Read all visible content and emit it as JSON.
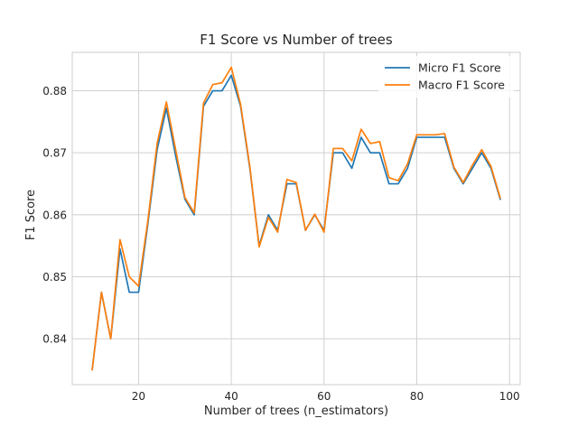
{
  "chart_data": {
    "type": "line",
    "title": "F1 Score vs Number of trees",
    "xlabel": "Number of trees (n_estimators)",
    "ylabel": "F1 Score",
    "xlim": [
      5.7,
      102.3
    ],
    "ylim": [
      0.8326,
      0.8862
    ],
    "xticks": [
      20,
      40,
      60,
      80,
      100
    ],
    "xtick_labels": [
      "20",
      "40",
      "60",
      "80",
      "100"
    ],
    "yticks": [
      0.84,
      0.85,
      0.86,
      0.87,
      0.88
    ],
    "ytick_labels": [
      "0.84",
      "0.85",
      "0.86",
      "0.87",
      "0.88"
    ],
    "grid": true,
    "legend_position": "top-right",
    "x": [
      10,
      12,
      14,
      16,
      18,
      20,
      22,
      24,
      26,
      28,
      30,
      32,
      34,
      36,
      38,
      40,
      42,
      44,
      46,
      48,
      50,
      52,
      54,
      56,
      58,
      60,
      62,
      64,
      66,
      68,
      70,
      72,
      74,
      76,
      78,
      80,
      82,
      84,
      86,
      88,
      90,
      92,
      94,
      96,
      98
    ],
    "series": [
      {
        "name": "Micro F1 Score",
        "color": "#1f77b4",
        "values": [
          0.835,
          0.8475,
          0.84,
          0.8545,
          0.8475,
          0.8475,
          0.8585,
          0.8705,
          0.8772,
          0.8695,
          0.8625,
          0.86,
          0.8775,
          0.88,
          0.88,
          0.8825,
          0.8775,
          0.8675,
          0.855,
          0.86,
          0.8575,
          0.865,
          0.865,
          0.8575,
          0.86,
          0.8575,
          0.87,
          0.87,
          0.8675,
          0.8725,
          0.87,
          0.87,
          0.865,
          0.865,
          0.8675,
          0.8725,
          0.8725,
          0.8725,
          0.8725,
          0.8675,
          0.865,
          0.8675,
          0.87,
          0.8675,
          0.8625
        ]
      },
      {
        "name": "Macro F1 Score",
        "color": "#ff7f0e",
        "values": [
          0.835,
          0.8475,
          0.84,
          0.856,
          0.85,
          0.8485,
          0.859,
          0.8715,
          0.8782,
          0.8705,
          0.8628,
          0.8603,
          0.878,
          0.881,
          0.8813,
          0.8838,
          0.8778,
          0.8678,
          0.8548,
          0.8596,
          0.8572,
          0.8657,
          0.8652,
          0.8575,
          0.8601,
          0.8572,
          0.8707,
          0.8707,
          0.8687,
          0.8738,
          0.8715,
          0.8718,
          0.866,
          0.8655,
          0.8682,
          0.8729,
          0.8729,
          0.8729,
          0.8731,
          0.8677,
          0.8652,
          0.868,
          0.8705,
          0.8678,
          0.8627
        ]
      }
    ]
  }
}
